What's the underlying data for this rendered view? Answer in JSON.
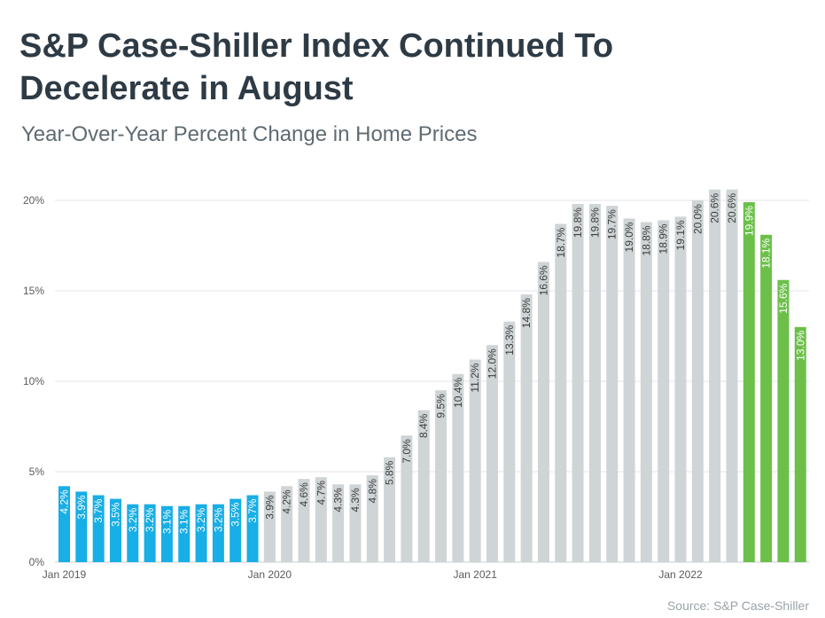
{
  "header": {
    "title_line1": "S&P Case-Shiller Index Continued To",
    "title_line2": "Decelerate in August",
    "subtitle": "Year-Over-Year Percent Change in Home Prices"
  },
  "source": "Source: S&P Case-Shiller",
  "colors": {
    "blue": "#18aee6",
    "gray": "#cfd4d6",
    "green": "#6cc04a",
    "gridline": "#e3e6e8"
  },
  "chart_data": {
    "type": "bar",
    "title": "S&P Case-Shiller Index Continued To Decelerate in August",
    "subtitle": "Year-Over-Year Percent Change in Home Prices",
    "xlabel": "",
    "ylabel": "",
    "ylim": [
      0,
      20
    ],
    "y_ticks": [
      "0%",
      "5%",
      "10%",
      "15%",
      "20%"
    ],
    "x_tick_labels": [
      {
        "index": 0,
        "label": "Jan 2019"
      },
      {
        "index": 12,
        "label": "Jan 2020"
      },
      {
        "index": 24,
        "label": "Jan 2021"
      },
      {
        "index": 36,
        "label": "Jan 2022"
      }
    ],
    "grid": true,
    "color_groups": {
      "blue": [
        0,
        11
      ],
      "gray": [
        12,
        39
      ],
      "green": [
        40,
        44
      ]
    },
    "categories": [
      "2019-01",
      "2019-02",
      "2019-03",
      "2019-04",
      "2019-05",
      "2019-06",
      "2019-07",
      "2019-08",
      "2019-09",
      "2019-10",
      "2019-11",
      "2019-12",
      "2020-01",
      "2020-02",
      "2020-03",
      "2020-04",
      "2020-05",
      "2020-06",
      "2020-07",
      "2020-08",
      "2020-09",
      "2020-10",
      "2020-11",
      "2020-12",
      "2021-01",
      "2021-02",
      "2021-03",
      "2021-04",
      "2021-05",
      "2021-06",
      "2021-07",
      "2021-08",
      "2021-09",
      "2021-10",
      "2021-11",
      "2021-12",
      "2022-01",
      "2022-02",
      "2022-03",
      "2022-04",
      "2022-05",
      "2022-06",
      "2022-07",
      "2022-08"
    ],
    "values": [
      4.2,
      3.9,
      3.7,
      3.5,
      3.2,
      3.2,
      3.1,
      3.1,
      3.2,
      3.2,
      3.5,
      3.7,
      3.9,
      4.2,
      4.6,
      4.7,
      4.3,
      4.3,
      4.8,
      5.8,
      7.0,
      8.4,
      9.5,
      10.4,
      11.2,
      12.0,
      13.3,
      14.8,
      16.6,
      18.7,
      19.8,
      19.8,
      19.7,
      19.0,
      18.8,
      18.9,
      19.1,
      20.0,
      20.6,
      20.6,
      19.9,
      18.1,
      15.6,
      13.0
    ],
    "labels": [
      "4.2%",
      "3.9%",
      "3.7%",
      "3.5%",
      "3.2%",
      "3.2%",
      "3.1%",
      "3.1%",
      "3.2%",
      "3.2%",
      "3.5%",
      "3.7%",
      "3.9%",
      "4.2%",
      "4.6%",
      "4.7%",
      "4.3%",
      "4.3%",
      "4.8%",
      "5.8%",
      "7.0%",
      "8.4%",
      "9.5%",
      "10.4%",
      "11.2%",
      "12.0%",
      "13.3%",
      "14.8%",
      "16.6%",
      "18.7%",
      "19.8%",
      "19.8%",
      "19.7%",
      "19.0%",
      "18.8%",
      "18.9%",
      "19.1%",
      "20.0%",
      "20.6%",
      "20.6%",
      "19.9%",
      "18.1%",
      "15.6%",
      "13.0%"
    ]
  }
}
